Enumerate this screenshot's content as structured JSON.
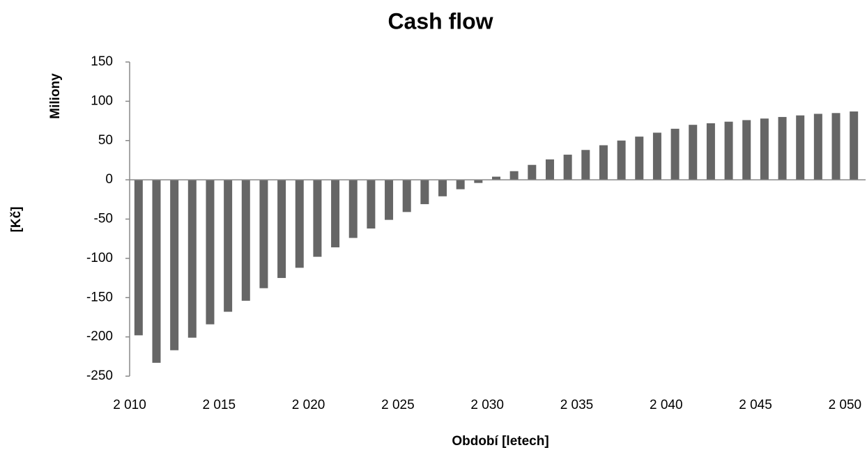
{
  "chart_data": {
    "type": "bar",
    "title": "Cash flow",
    "y_label": "Miliony",
    "y_unit_label": "[Kč]",
    "x_label": "Období [letech]",
    "categories": [
      "2 010",
      null,
      null,
      null,
      null,
      "2 015",
      null,
      null,
      null,
      null,
      "2 020",
      null,
      null,
      null,
      null,
      "2 025",
      null,
      null,
      null,
      null,
      "2 030",
      null,
      null,
      null,
      null,
      "2 035",
      null,
      null,
      null,
      null,
      "2 040",
      null,
      null,
      null,
      null,
      "2 045",
      null,
      null,
      null,
      null,
      "2 050"
    ],
    "values": [
      -198,
      -233,
      -217,
      -201,
      -184,
      -168,
      -154,
      -138,
      -125,
      -112,
      -98,
      -86,
      -74,
      -62,
      -51,
      -41,
      -31,
      -21,
      -12,
      -4,
      4,
      11,
      19,
      26,
      32,
      38,
      44,
      50,
      55,
      60,
      65,
      70,
      72,
      74,
      76,
      78,
      80,
      82,
      84,
      85,
      87
    ],
    "color": "#666666",
    "ylim": [
      -250,
      150
    ],
    "yticks": [
      -250,
      -200,
      -150,
      -100,
      -50,
      0,
      50,
      100,
      150
    ],
    "grid": false
  }
}
